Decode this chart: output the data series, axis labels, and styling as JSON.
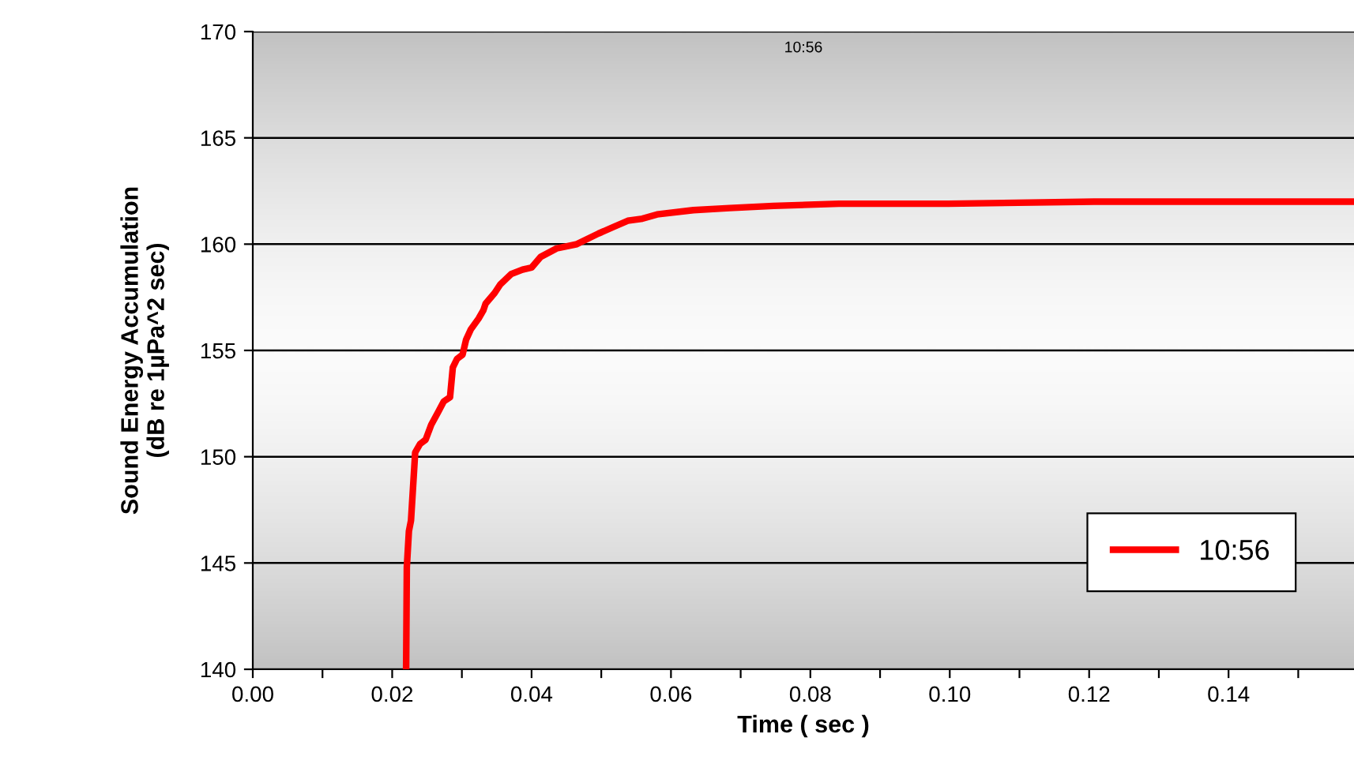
{
  "chart_data": {
    "type": "line",
    "title": "10:56",
    "xlabel": "Time ( sec )",
    "ylabel": "Sound Energy Accumulation\n(dB re 1µPa^2 sec)",
    "series": [
      {
        "name": "10:56",
        "color": "#ff0000",
        "x": [
          0.022,
          0.0221,
          0.0224,
          0.0227,
          0.0233,
          0.024,
          0.0248,
          0.0256,
          0.0266,
          0.0274,
          0.0283,
          0.0287,
          0.0293,
          0.0301,
          0.0306,
          0.0313,
          0.0324,
          0.0331,
          0.0334,
          0.0347,
          0.0355,
          0.0371,
          0.0387,
          0.04,
          0.0413,
          0.0436,
          0.0465,
          0.0496,
          0.0517,
          0.0538,
          0.0559,
          0.058,
          0.0632,
          0.0684,
          0.0747,
          0.0841,
          0.0998,
          0.1207,
          0.1416,
          0.158
        ],
        "values": [
          140.0,
          144.8,
          146.5,
          147.0,
          150.2,
          150.6,
          150.8,
          151.5,
          152.1,
          152.6,
          152.8,
          154.2,
          154.6,
          154.8,
          155.5,
          156.0,
          156.5,
          156.9,
          157.2,
          157.7,
          158.1,
          158.6,
          158.8,
          158.9,
          159.4,
          159.8,
          160.0,
          160.5,
          160.8,
          161.1,
          161.2,
          161.4,
          161.6,
          161.7,
          161.8,
          161.9,
          161.9,
          162.0,
          162.0,
          162.0
        ]
      }
    ],
    "xlim": [
      0,
      0.158
    ],
    "ylim": [
      140,
      170
    ],
    "xticks": [
      {
        "value": 0,
        "label": "0.00"
      },
      {
        "value": 0.01,
        "label": null
      },
      {
        "value": 0.02,
        "label": "0.02"
      },
      {
        "value": 0.03,
        "label": null
      },
      {
        "value": 0.04,
        "label": "0.04"
      },
      {
        "value": 0.05,
        "label": null
      },
      {
        "value": 0.06,
        "label": "0.06"
      },
      {
        "value": 0.07,
        "label": null
      },
      {
        "value": 0.08,
        "label": "0.08"
      },
      {
        "value": 0.09,
        "label": null
      },
      {
        "value": 0.1,
        "label": "0.10"
      },
      {
        "value": 0.11,
        "label": null
      },
      {
        "value": 0.12,
        "label": "0.12"
      },
      {
        "value": 0.13,
        "label": null
      },
      {
        "value": 0.14,
        "label": "0.14"
      },
      {
        "value": 0.15,
        "label": null
      }
    ],
    "yticks": [
      140,
      145,
      150,
      155,
      160,
      165,
      170
    ],
    "grid": "y",
    "legend": "bottom right",
    "marker": "none",
    "line_style": "solid"
  }
}
